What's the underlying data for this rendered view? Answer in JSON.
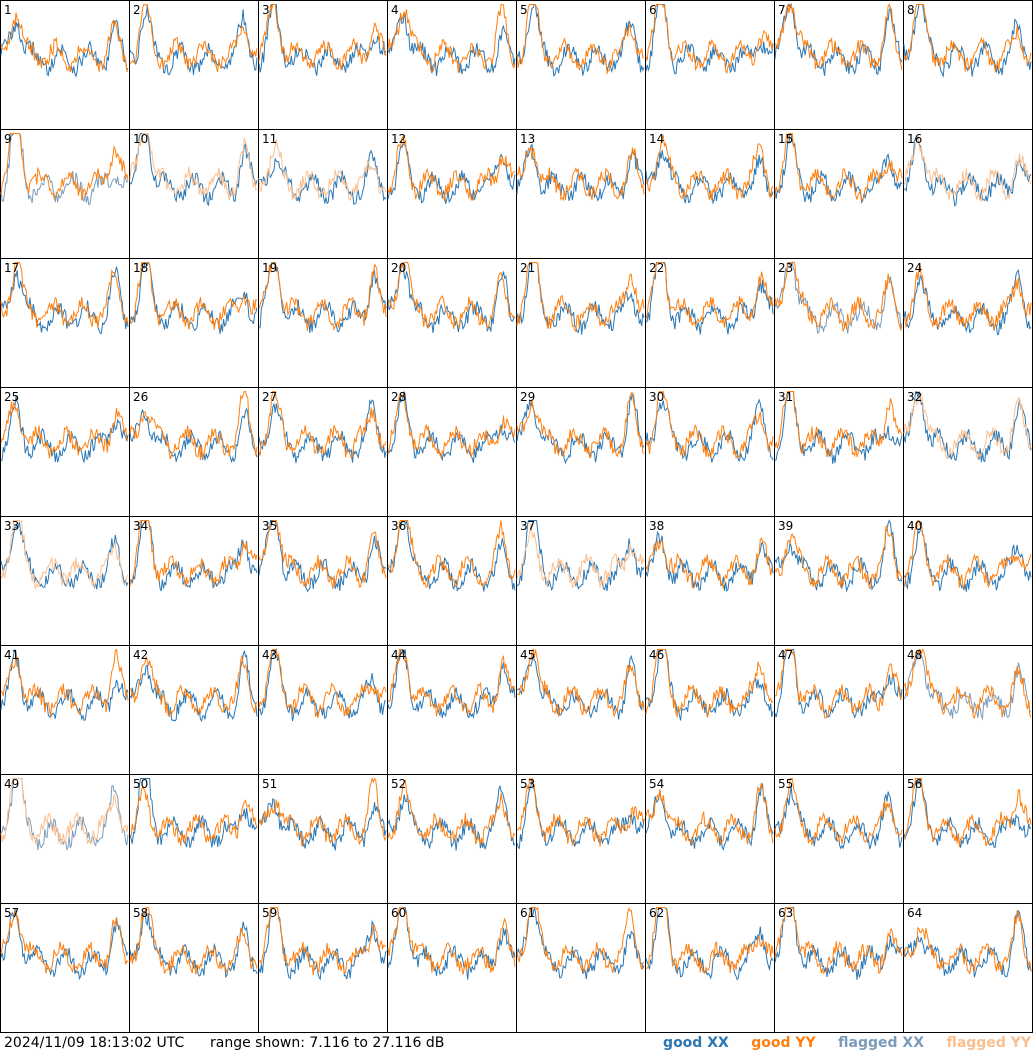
{
  "chart_data": {
    "type": "line",
    "panel_labels": [
      "1",
      "2",
      "3",
      "4",
      "5",
      "6",
      "7",
      "8",
      "9",
      "10",
      "11",
      "12",
      "13",
      "14",
      "15",
      "16",
      "17",
      "18",
      "19",
      "20",
      "21",
      "22",
      "23",
      "24",
      "25",
      "26",
      "27",
      "28",
      "29",
      "30",
      "31",
      "32",
      "33",
      "34",
      "35",
      "36",
      "37",
      "38",
      "39",
      "40",
      "41",
      "42",
      "43",
      "44",
      "45",
      "46",
      "47",
      "48",
      "49",
      "50",
      "51",
      "52",
      "53",
      "54",
      "55",
      "56",
      "57",
      "58",
      "59",
      "60",
      "61",
      "62",
      "63",
      "64"
    ],
    "series": [
      {
        "name": "good XX",
        "color": "#2a77b4"
      },
      {
        "name": "good YY",
        "color": "#ff7f0e"
      },
      {
        "name": "flagged XX",
        "color": "#7a9cba"
      },
      {
        "name": "flagged YY",
        "color": "#fbbf8f"
      }
    ],
    "range_db": [
      7.116,
      27.116
    ],
    "panel_status": {
      "flagged_xx": [
        "9",
        "23",
        "48",
        "49"
      ],
      "flagged_yy": [
        "10",
        "11",
        "16",
        "32",
        "33",
        "37",
        "49"
      ]
    }
  },
  "footer": {
    "timestamp": "2024/11/09 18:13:02 UTC",
    "range_text": "range shown: 7.116 to 27.116 dB",
    "legend": [
      "good XX",
      "good YY",
      "flagged XX",
      "flagged YY"
    ]
  }
}
